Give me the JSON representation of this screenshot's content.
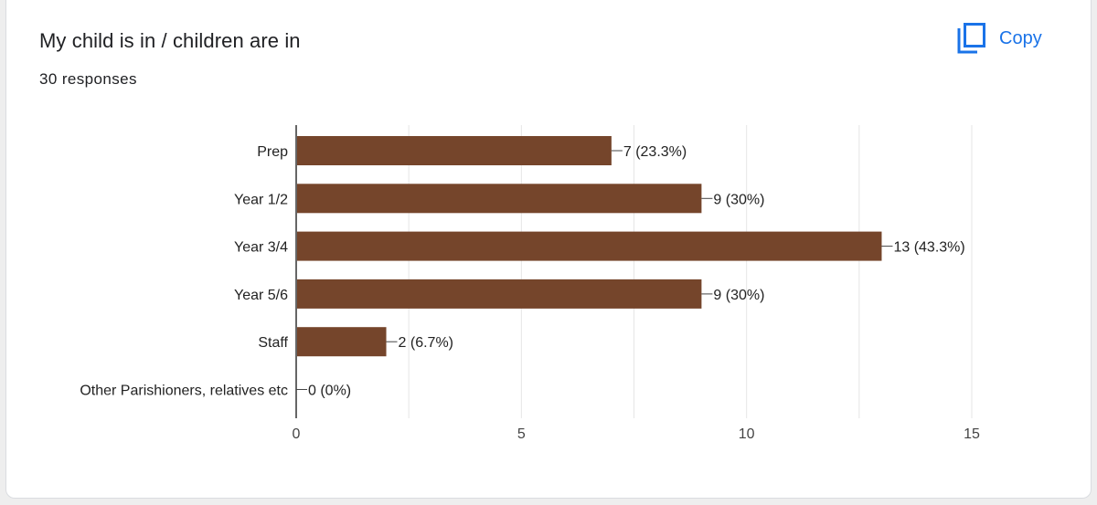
{
  "header": {
    "title": "My child is in / children are in",
    "responses": "30 responses",
    "copy_label": "Copy"
  },
  "icons": {
    "copy": "copy-icon"
  },
  "colors": {
    "bar": "#75452b",
    "accent": "#1a73e8",
    "grid": "#e6e6e6",
    "axis": "#333333"
  },
  "chart_data": {
    "type": "bar",
    "orientation": "horizontal",
    "categories": [
      "Prep",
      "Year 1/2",
      "Year 3/4",
      "Year 5/6",
      "Staff",
      "Other Parishioners, relatives etc"
    ],
    "values": [
      7,
      9,
      13,
      9,
      2,
      0
    ],
    "data_labels": [
      "7 (23.3%)",
      "9 (30%)",
      "13 (43.3%)",
      "9 (30%)",
      "2 (6.7%)",
      "0 (0%)"
    ],
    "xlim": [
      0,
      15
    ],
    "xticks": [
      0,
      5,
      10,
      15
    ],
    "grid": true,
    "legend": "none"
  }
}
